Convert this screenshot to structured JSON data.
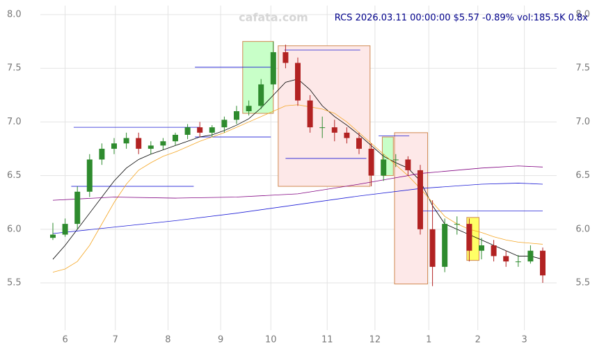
{
  "chart_data": {
    "type": "candlestick",
    "title": "RCS 2026.03.11 00:00:00 $5.57 -0.89% vol:185.5K 0.8x",
    "watermark": "cafata.com",
    "x": [
      0,
      1,
      2,
      3,
      4,
      5,
      6,
      7,
      8,
      9,
      10,
      11,
      12,
      13,
      14,
      15,
      16,
      17,
      18,
      19,
      20,
      21,
      22,
      23,
      24,
      25,
      26,
      27,
      28,
      29,
      30,
      31,
      32,
      33,
      34,
      35,
      36,
      37,
      38,
      39,
      40
    ],
    "open": [
      5.92,
      5.95,
      6.05,
      6.35,
      6.65,
      6.75,
      6.8,
      6.85,
      6.75,
      6.78,
      6.82,
      6.88,
      6.95,
      6.9,
      6.95,
      7.02,
      7.1,
      7.15,
      7.35,
      7.65,
      7.55,
      7.2,
      6.95,
      6.95,
      6.9,
      6.85,
      6.75,
      6.5,
      6.65,
      6.65,
      6.55,
      6.0,
      5.65,
      6.05,
      6.05,
      5.8,
      5.85,
      5.75,
      5.7,
      5.7,
      5.8
    ],
    "high": [
      6.06,
      6.1,
      6.4,
      6.7,
      6.8,
      6.85,
      6.9,
      6.9,
      6.82,
      6.85,
      6.9,
      6.98,
      7.0,
      6.97,
      7.05,
      7.15,
      7.2,
      7.4,
      7.75,
      7.72,
      7.6,
      7.25,
      7.05,
      7.02,
      6.95,
      6.9,
      6.8,
      6.7,
      6.7,
      6.68,
      6.6,
      6.27,
      6.1,
      6.12,
      6.1,
      5.92,
      5.9,
      5.8,
      5.76,
      5.85,
      5.83
    ],
    "low": [
      5.9,
      5.93,
      6.0,
      6.3,
      6.6,
      6.7,
      6.75,
      6.7,
      6.7,
      6.74,
      6.78,
      6.84,
      6.86,
      6.86,
      6.9,
      6.98,
      7.06,
      7.12,
      7.3,
      7.5,
      7.15,
      6.9,
      6.85,
      6.82,
      6.8,
      6.7,
      6.4,
      6.45,
      6.58,
      6.5,
      5.95,
      5.47,
      5.6,
      5.95,
      5.7,
      5.72,
      5.7,
      5.65,
      5.65,
      5.68,
      5.5
    ],
    "close": [
      5.95,
      6.05,
      6.35,
      6.65,
      6.75,
      6.8,
      6.85,
      6.75,
      6.78,
      6.82,
      6.88,
      6.95,
      6.9,
      6.95,
      7.02,
      7.1,
      7.15,
      7.35,
      7.65,
      7.55,
      7.2,
      6.95,
      6.95,
      6.9,
      6.85,
      6.75,
      6.5,
      6.65,
      6.65,
      6.55,
      6.0,
      5.65,
      6.05,
      6.05,
      5.8,
      5.85,
      5.75,
      5.7,
      5.7,
      5.8,
      5.57
    ],
    "up_color": "#2e8b2e",
    "down_color": "#b22222",
    "lines": [
      {
        "color": "#000000",
        "x": [
          0,
          1,
          2,
          3,
          4,
          5,
          6,
          7,
          8,
          9,
          10,
          11,
          12,
          13,
          14,
          15,
          16,
          17,
          18,
          19,
          20,
          21,
          22,
          23,
          24,
          25,
          26,
          27,
          28,
          29,
          30,
          31,
          32,
          33,
          34,
          35,
          36,
          37,
          38,
          39,
          40
        ],
        "values": [
          5.72,
          5.85,
          6.0,
          6.15,
          6.3,
          6.45,
          6.57,
          6.65,
          6.7,
          6.74,
          6.78,
          6.82,
          6.86,
          6.88,
          6.92,
          6.97,
          7.03,
          7.13,
          7.25,
          7.37,
          7.4,
          7.3,
          7.15,
          7.05,
          6.97,
          6.88,
          6.78,
          6.68,
          6.62,
          6.57,
          6.45,
          6.22,
          6.05,
          6.0,
          5.95,
          5.9,
          5.85,
          5.8,
          5.75,
          5.75,
          5.72
        ]
      },
      {
        "color": "#f5a623",
        "x": [
          0,
          1,
          2,
          3,
          4,
          5,
          6,
          7,
          8,
          9,
          10,
          11,
          12,
          13,
          14,
          15,
          16,
          17,
          18,
          19,
          20,
          21,
          22,
          23,
          24,
          25,
          26,
          27,
          28,
          29,
          30,
          31,
          32,
          33,
          34,
          35,
          36,
          37,
          38,
          39,
          40
        ],
        "values": [
          5.6,
          5.63,
          5.7,
          5.85,
          6.05,
          6.25,
          6.42,
          6.55,
          6.62,
          6.68,
          6.72,
          6.77,
          6.82,
          6.86,
          6.9,
          6.95,
          7.0,
          7.05,
          7.1,
          7.15,
          7.16,
          7.14,
          7.12,
          7.08,
          7.0,
          6.9,
          6.8,
          6.7,
          6.6,
          6.5,
          6.38,
          6.25,
          6.12,
          6.05,
          6.0,
          5.97,
          5.93,
          5.9,
          5.88,
          5.87,
          5.86
        ]
      },
      {
        "color": "#800080",
        "x": [
          0,
          5,
          10,
          15,
          20,
          25,
          30,
          35,
          38,
          40
        ],
        "values": [
          6.27,
          6.3,
          6.29,
          6.3,
          6.33,
          6.42,
          6.52,
          6.57,
          6.59,
          6.58
        ]
      },
      {
        "color": "#1a1ad6",
        "x": [
          0,
          5,
          10,
          15,
          20,
          25,
          30,
          35,
          38,
          40
        ],
        "values": [
          5.96,
          6.02,
          6.08,
          6.15,
          6.23,
          6.31,
          6.38,
          6.42,
          6.43,
          6.42
        ]
      }
    ],
    "levels": [
      {
        "x": [
          11.6,
          17.8
        ],
        "y": 7.51
      },
      {
        "x": [
          1.7,
          12.0
        ],
        "y": 6.95
      },
      {
        "x": [
          11.6,
          17.8
        ],
        "y": 6.86
      },
      {
        "x": [
          1.5,
          11.5
        ],
        "y": 6.4
      },
      {
        "x": [
          18.9,
          25.1
        ],
        "y": 7.67
      },
      {
        "x": [
          19.0,
          25.6
        ],
        "y": 6.66
      },
      {
        "x": [
          26.6,
          29.1
        ],
        "y": 6.87
      },
      {
        "x": [
          30.0,
          40.0
        ],
        "y": 6.17
      }
    ],
    "boxes": [
      {
        "x": [
          15.5,
          18.0
        ],
        "y": [
          7.08,
          7.75
        ],
        "color": "#c8ffc8"
      },
      {
        "x": [
          18.4,
          25.9
        ],
        "y": [
          6.4,
          7.71
        ],
        "color": "#fde8e8"
      },
      {
        "x": [
          26.9,
          27.8
        ],
        "y": [
          6.5,
          6.86
        ],
        "color": "#c8ffc8"
      },
      {
        "x": [
          27.9,
          30.6
        ],
        "y": [
          5.49,
          6.9
        ],
        "color": "#fde8e8"
      },
      {
        "x": [
          33.8,
          34.8
        ],
        "y": [
          5.71,
          6.11
        ],
        "color": "#ffff66"
      }
    ],
    "xlim": [
      0,
      40
    ],
    "ylim": [
      5.1,
      8.1
    ],
    "xticks": [
      {
        "value": 1.0,
        "label": "6"
      },
      {
        "value": 5.1,
        "label": "7"
      },
      {
        "value": 9.4,
        "label": "8"
      },
      {
        "value": 13.7,
        "label": "9"
      },
      {
        "value": 17.8,
        "label": "10"
      },
      {
        "value": 22.4,
        "label": "11"
      },
      {
        "value": 26.3,
        "label": "12"
      },
      {
        "value": 30.7,
        "label": "1"
      },
      {
        "value": 34.7,
        "label": "2"
      },
      {
        "value": 38.5,
        "label": "3"
      }
    ],
    "yticks": [
      {
        "value": 5.5,
        "label": "5.5"
      },
      {
        "value": 6.0,
        "label": "6.0"
      },
      {
        "value": 6.5,
        "label": "6.5"
      },
      {
        "value": 7.0,
        "label": "7.0"
      },
      {
        "value": 7.5,
        "label": "7.5"
      },
      {
        "value": 8.0,
        "label": "8.0"
      }
    ],
    "grid": true
  }
}
